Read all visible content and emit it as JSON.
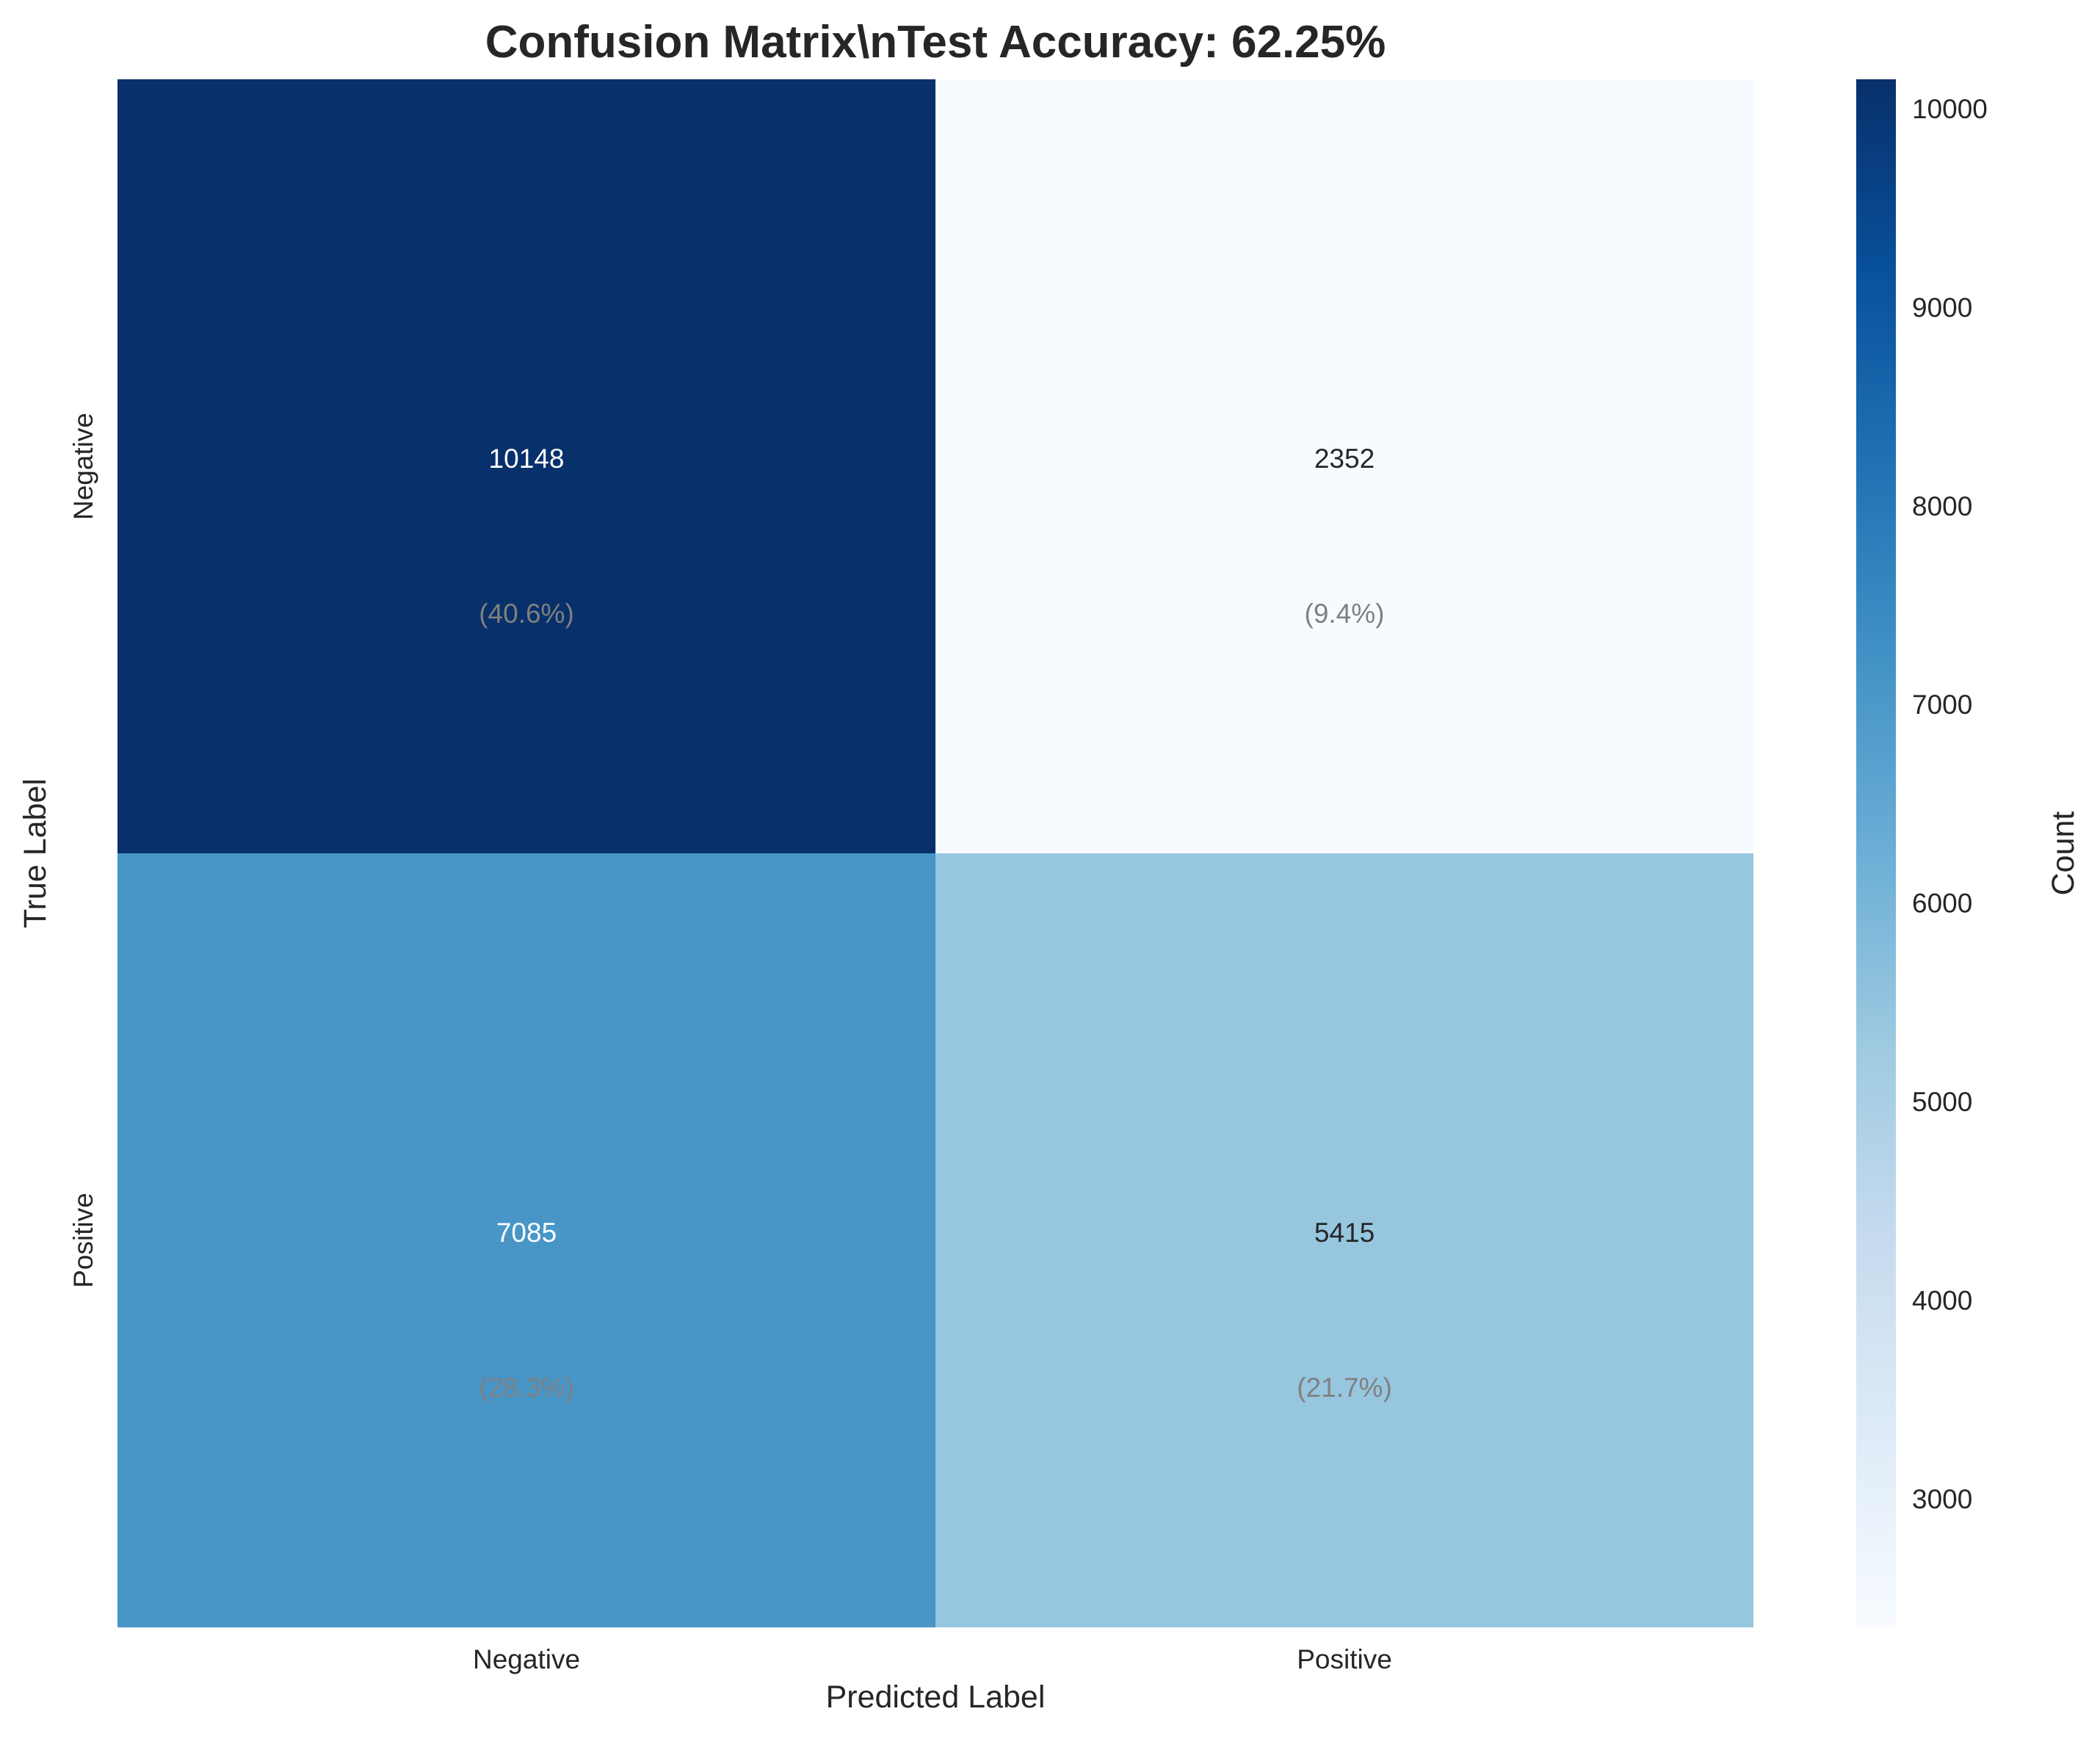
{
  "chart_data": {
    "type": "heatmap",
    "title": "Confusion Matrix\\nTest Accuracy: 62.25%",
    "xlabel": "Predicted Label",
    "ylabel": "True Label",
    "x_categories": [
      "Negative",
      "Positive"
    ],
    "y_categories": [
      "Negative",
      "Positive"
    ],
    "values": [
      [
        10148,
        2352
      ],
      [
        7085,
        5415
      ]
    ],
    "percent_labels": [
      [
        "(40.6%)",
        "(9.4%)"
      ],
      [
        "(28.3%)",
        "(21.7%)"
      ]
    ],
    "colorbar": {
      "label": "Count",
      "min": 2352,
      "max": 10148,
      "ticks": [
        3000,
        4000,
        5000,
        6000,
        7000,
        8000,
        9000,
        10000
      ],
      "colormap": "Blues"
    },
    "colors": {
      "count_text_dark_bg": "#ffffff",
      "count_text_light_bg": "#262626",
      "percent_text": "#808080"
    }
  }
}
